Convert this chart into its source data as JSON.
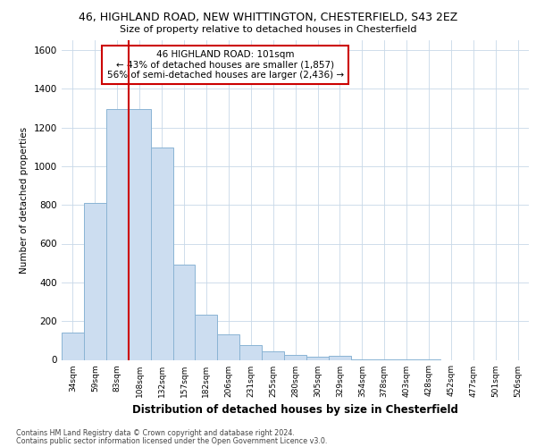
{
  "title_line1": "46, HIGHLAND ROAD, NEW WHITTINGTON, CHESTERFIELD, S43 2EZ",
  "title_line2": "Size of property relative to detached houses in Chesterfield",
  "xlabel": "Distribution of detached houses by size in Chesterfield",
  "ylabel": "Number of detached properties",
  "bar_color": "#ccddf0",
  "bar_edge_color": "#8ab4d4",
  "categories": [
    "34sqm",
    "59sqm",
    "83sqm",
    "108sqm",
    "132sqm",
    "157sqm",
    "182sqm",
    "206sqm",
    "231sqm",
    "255sqm",
    "280sqm",
    "305sqm",
    "329sqm",
    "354sqm",
    "378sqm",
    "403sqm",
    "428sqm",
    "452sqm",
    "477sqm",
    "501sqm",
    "526sqm"
  ],
  "values": [
    140,
    810,
    1295,
    1295,
    1095,
    490,
    235,
    130,
    75,
    45,
    25,
    15,
    20,
    3,
    2,
    1,
    1,
    0,
    0,
    0,
    0
  ],
  "ylim": [
    0,
    1650
  ],
  "yticks": [
    0,
    200,
    400,
    600,
    800,
    1000,
    1200,
    1400,
    1600
  ],
  "vline_color": "#cc0000",
  "annotation_title": "46 HIGHLAND ROAD: 101sqm",
  "annotation_line1": "← 43% of detached houses are smaller (1,857)",
  "annotation_line2": "56% of semi-detached houses are larger (2,436) →",
  "annotation_box_color": "#cc0000",
  "footnote1": "Contains HM Land Registry data © Crown copyright and database right 2024.",
  "footnote2": "Contains public sector information licensed under the Open Government Licence v3.0.",
  "background_color": "#ffffff",
  "grid_color": "#c8d8e8"
}
